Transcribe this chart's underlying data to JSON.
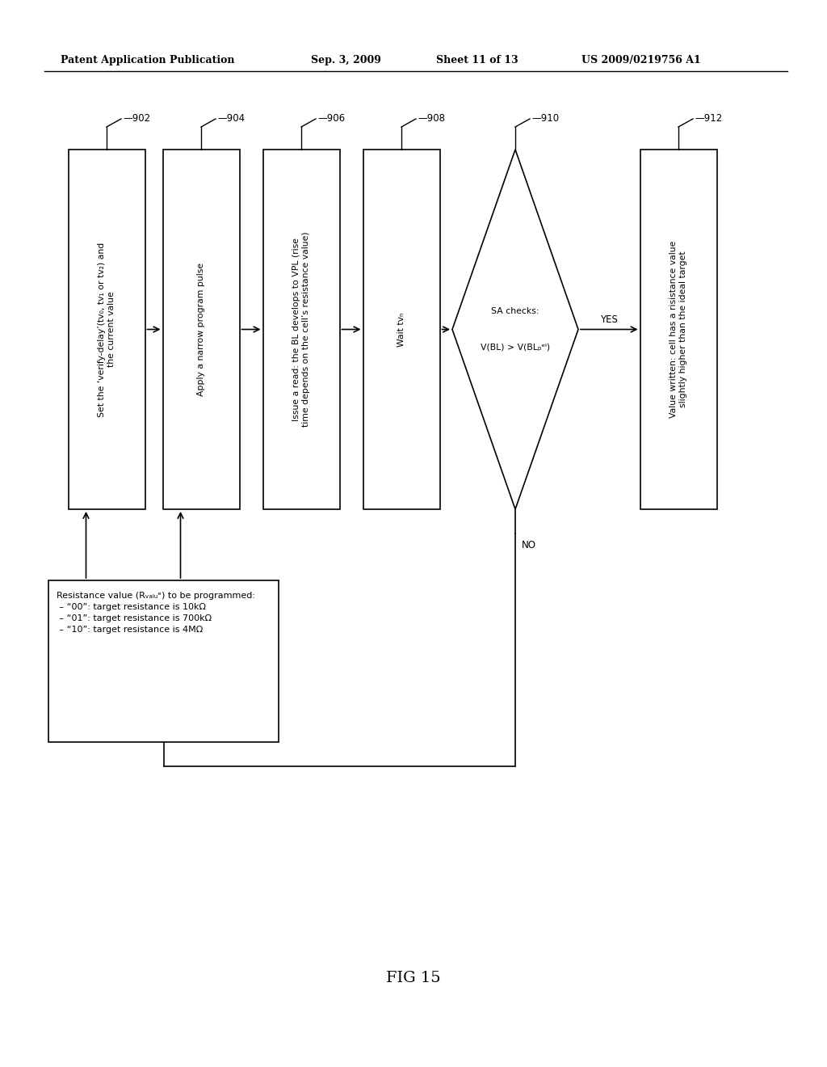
{
  "bg_color": "#ffffff",
  "header_text": "Patent Application Publication",
  "header_date": "Sep. 3, 2009",
  "header_sheet": "Sheet 11 of 13",
  "header_patent": "US 2009/0219756 A1",
  "fig_label": "FIG 15",
  "box_902_text": "Set the ‘verify-delay’(tv₀, tv₁ or tv₂) and\nthe current value",
  "box_904_text": "Apply a narrow program pulse",
  "box_906_text": "Issue a read: the BL develops to VPL (rise\ntime depends on the cell’s resistance value)",
  "box_908_text": "Wait tvₙ",
  "diamond_910_text_top": "SA checks:",
  "diamond_910_text_bot": "V(BL) > V(BLₚᵉˡ)",
  "box_912_text": "Value written: cell has a risistance value\nslightly higher than the ideal target",
  "yes_label": "YES",
  "no_label": "NO",
  "note_line1": "Resistance value (R",
  "note_text": "Resistance value (Rᵥₐₗᵤᵉ) to be programmed:",
  "note_line_00": " – “00”: target resistance is 10kΩ",
  "note_line_01": " – “01”: target resistance is 700kΩ",
  "note_line_10": " – “10”: target resistance is 4MΩ",
  "label_902": "902",
  "label_904": "904",
  "label_906": "906",
  "label_908": "908",
  "label_910": "910",
  "label_912": "912"
}
